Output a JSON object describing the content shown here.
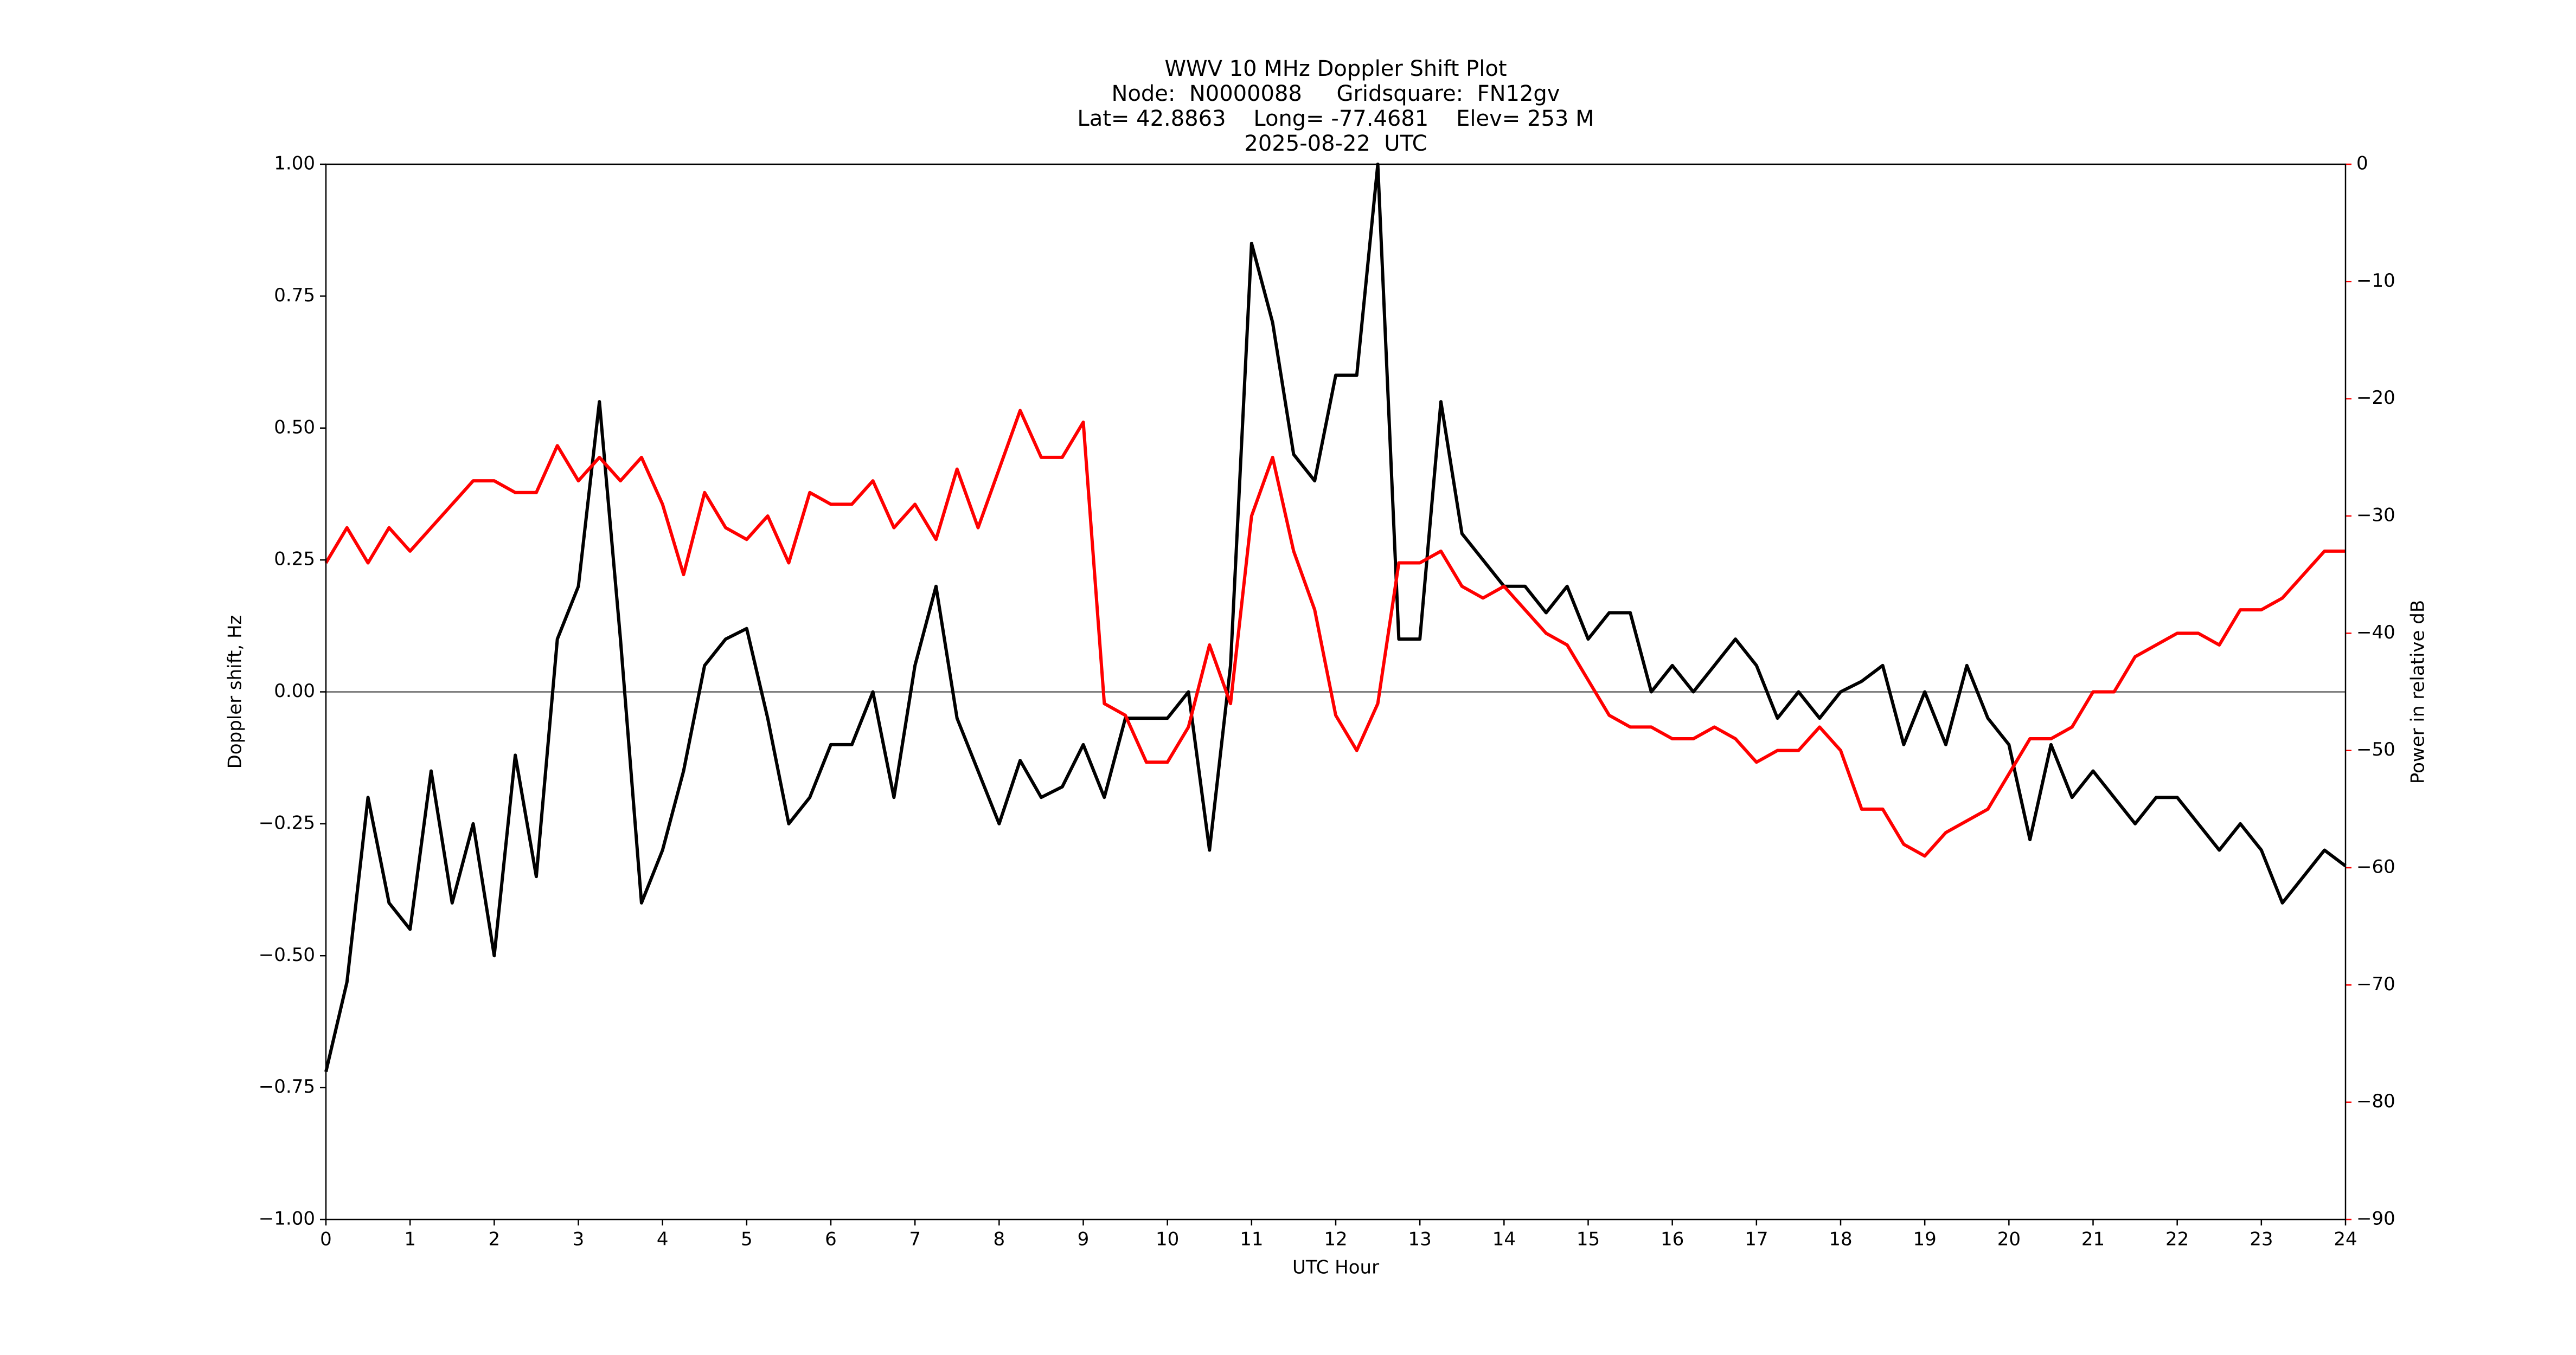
{
  "chart_data": {
    "type": "line",
    "title": [
      "WWV 10 MHz Doppler Shift Plot",
      "Node:  N0000088     Gridsquare:  FN12gv",
      "Lat= 42.8863    Long= -77.4681    Elev= 253 M",
      "2025-08-22  UTC"
    ],
    "xlabel": "UTC Hour",
    "ylabel": "Doppler shift, Hz",
    "y2label": "Power in relative dB",
    "y2color": "#ff0000",
    "reference_line": 0,
    "xlim": [
      0,
      24
    ],
    "xticks": [
      0,
      1,
      2,
      3,
      4,
      5,
      6,
      7,
      8,
      9,
      10,
      11,
      12,
      13,
      14,
      15,
      16,
      17,
      18,
      19,
      20,
      21,
      22,
      23,
      24
    ],
    "ylim": [
      -1,
      1
    ],
    "yticks": [
      {
        "value": -1,
        "label": "−1.00"
      },
      {
        "value": -0.75,
        "label": "−0.75"
      },
      {
        "value": -0.5,
        "label": "−0.50"
      },
      {
        "value": -0.25,
        "label": "−0.25"
      },
      {
        "value": 0,
        "label": "0.00"
      },
      {
        "value": 0.25,
        "label": "0.25"
      },
      {
        "value": 0.5,
        "label": "0.50"
      },
      {
        "value": 0.75,
        "label": "0.75"
      },
      {
        "value": 1,
        "label": "1.00"
      }
    ],
    "y2lim": [
      -90,
      0
    ],
    "y2ticks": [
      {
        "value": -90,
        "label": "−90"
      },
      {
        "value": -80,
        "label": "−80"
      },
      {
        "value": -70,
        "label": "−70"
      },
      {
        "value": -60,
        "label": "−60"
      },
      {
        "value": -50,
        "label": "−50"
      },
      {
        "value": -40,
        "label": "−40"
      },
      {
        "value": -30,
        "label": "−30"
      },
      {
        "value": -20,
        "label": "−20"
      },
      {
        "value": -10,
        "label": "−10"
      },
      0
    ],
    "x": [
      0,
      0.25,
      0.5,
      0.75,
      1,
      1.25,
      1.5,
      1.75,
      2,
      2.25,
      2.5,
      2.75,
      3,
      3.25,
      3.5,
      3.75,
      4,
      4.25,
      4.5,
      4.75,
      5,
      5.25,
      5.5,
      5.75,
      6,
      6.25,
      6.5,
      6.75,
      7,
      7.25,
      7.5,
      7.75,
      8,
      8.25,
      8.5,
      8.75,
      9,
      9.25,
      9.5,
      9.75,
      10,
      10.25,
      10.5,
      10.75,
      11,
      11.25,
      11.5,
      11.75,
      12,
      12.25,
      12.5,
      12.75,
      13,
      13.25,
      13.5,
      13.75,
      14,
      14.25,
      14.5,
      14.75,
      15,
      15.25,
      15.5,
      15.75,
      16,
      16.25,
      16.5,
      16.75,
      17,
      17.25,
      17.5,
      17.75,
      18,
      18.25,
      18.5,
      18.75,
      19,
      19.25,
      19.5,
      19.75,
      20,
      20.25,
      20.5,
      20.75,
      21,
      21.25,
      21.5,
      21.75,
      22,
      22.25,
      22.5,
      22.75,
      23,
      23.25,
      23.5,
      23.75,
      24
    ],
    "series": [
      {
        "color": "#000000",
        "values": [
          -0.72,
          -0.55,
          -0.2,
          -0.4,
          -0.45,
          -0.15,
          -0.4,
          -0.25,
          -0.5,
          -0.12,
          -0.35,
          0.1,
          0.2,
          0.55,
          0.1,
          -0.4,
          -0.3,
          -0.15,
          0.05,
          0.1,
          0.12,
          -0.05,
          -0.25,
          -0.2,
          -0.1,
          -0.1,
          0.0,
          -0.2,
          0.05,
          0.2,
          -0.05,
          -0.15,
          -0.25,
          -0.13,
          -0.2,
          -0.18,
          -0.1,
          -0.2,
          -0.05,
          -0.05,
          -0.05,
          0.0,
          -0.3,
          0.05,
          0.85,
          0.7,
          0.45,
          0.4,
          0.6,
          0.6,
          1.0,
          0.1,
          0.1,
          0.55,
          0.3,
          0.25,
          0.2,
          0.2,
          0.15,
          0.2,
          0.1,
          0.15,
          0.15,
          0.0,
          0.05,
          0.0,
          0.05,
          0.1,
          0.05,
          -0.05,
          0.0,
          -0.05,
          0.0,
          0.02,
          0.05,
          -0.1,
          0.0,
          -0.1,
          0.05,
          -0.05,
          -0.1,
          -0.28,
          -0.1,
          -0.2,
          -0.15,
          -0.2,
          -0.25,
          -0.2,
          -0.2,
          -0.25,
          -0.3,
          -0.25,
          -0.3,
          -0.4,
          -0.35,
          -0.3,
          -0.33
        ]
      },
      {
        "color": "#ff0000",
        "axis": "y2",
        "values": [
          -34,
          -31,
          -34,
          -31,
          -33,
          -31,
          -29,
          -27,
          -27,
          -28,
          -28,
          -24,
          -27,
          -25,
          -27,
          -25,
          -29,
          -35,
          -28,
          -31,
          -32,
          -30,
          -34,
          -28,
          -29,
          -29,
          -27,
          -31,
          -29,
          -32,
          -26,
          -31,
          -26,
          -21,
          -25,
          -25,
          -22,
          -46,
          -47,
          -51,
          -51,
          -48,
          -41,
          -46,
          -30,
          -25,
          -33,
          -38,
          -47,
          -50,
          -46,
          -34,
          -34,
          -33,
          -36,
          -37,
          -36,
          -38,
          -40,
          -41,
          -44,
          -47,
          -48,
          -48,
          -49,
          -49,
          -48,
          -49,
          -51,
          -50,
          -50,
          -48,
          -50,
          -55,
          -55,
          -58,
          -59,
          -57,
          -56,
          -55,
          -52,
          -49,
          -49,
          -48,
          -45,
          -45,
          -42,
          -41,
          -40,
          -40,
          -41,
          -38,
          -38,
          -37,
          -35,
          -33,
          -33
        ]
      }
    ]
  }
}
